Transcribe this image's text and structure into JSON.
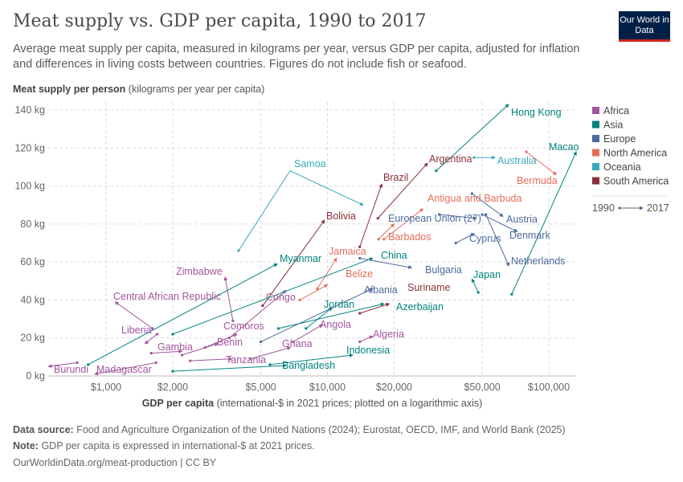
{
  "header": {
    "title": "Meat supply vs. GDP per capita, 1990 to 2017",
    "subtitle": "Average meat supply per capita, measured in kilograms per year, versus GDP per capita, adjusted for inflation and differences in living costs between countries. Figures do not include fish or seafood.",
    "logo": "Our World in Data"
  },
  "footer": {
    "source_label": "Data source:",
    "source": "Food and Agriculture Organization of the United Nations (2024); Eurostat, OECD, IMF, and World Bank (2025)",
    "note_label": "Note:",
    "note": "GDP per capita is expressed in international-$ at 2021 prices.",
    "url": "OurWorldinData.org/meat-production | CC BY"
  },
  "chart_data": {
    "type": "scatter",
    "title": "Meat supply vs. GDP per capita, 1990 to 2017",
    "ylabel_bold": "Meat supply per person",
    "ylabel_rest": "(kilograms per year per capita)",
    "xlabel_bold": "GDP per capita",
    "xlabel_rest": "(international-$ in 2021 prices; plotted on a logarithmic axis)",
    "x_scale": "log",
    "xlim": [
      550,
      133000
    ],
    "ylim": [
      0,
      140
    ],
    "grid": true,
    "x_ticks": [
      {
        "v": 1000,
        "label": "$1,000"
      },
      {
        "v": 2000,
        "label": "$2,000"
      },
      {
        "v": 5000,
        "label": "$5,000"
      },
      {
        "v": 10000,
        "label": "$10,000"
      },
      {
        "v": 20000,
        "label": "$20,000"
      },
      {
        "v": 50000,
        "label": "$50,000"
      },
      {
        "v": 100000,
        "label": "$100,000"
      }
    ],
    "y_ticks": [
      {
        "v": 0,
        "label": "0 kg"
      },
      {
        "v": 20,
        "label": "20 kg"
      },
      {
        "v": 40,
        "label": "40 kg"
      },
      {
        "v": 60,
        "label": "60 kg"
      },
      {
        "v": 80,
        "label": "80 kg"
      },
      {
        "v": 100,
        "label": "100 kg"
      },
      {
        "v": 120,
        "label": "120 kg"
      },
      {
        "v": 140,
        "label": "140 kg"
      }
    ],
    "legend_position": "right",
    "legend": [
      {
        "name": "Africa",
        "color": "#a2559c"
      },
      {
        "name": "Asia",
        "color": "#00847e"
      },
      {
        "name": "Europe",
        "color": "#4c6a9c"
      },
      {
        "name": "North America",
        "color": "#e56e5a"
      },
      {
        "name": "Oceania",
        "color": "#38aaba"
      },
      {
        "name": "South America",
        "color": "#883039"
      }
    ],
    "time_legend": {
      "start": "1990",
      "end": "2017"
    },
    "series": [
      {
        "name": "Hong Kong",
        "region": "Asia",
        "points": [
          [
            31000,
            108
          ],
          [
            65800,
            143
          ]
        ]
      },
      {
        "name": "Macao",
        "region": "Asia",
        "points": [
          [
            68000,
            43
          ],
          [
            133000,
            118
          ]
        ]
      },
      {
        "name": "Argentina",
        "region": "South America",
        "points": [
          [
            16900,
            83
          ],
          [
            28300,
            112
          ]
        ]
      },
      {
        "name": "Australia",
        "region": "Oceania",
        "points": [
          [
            45900,
            115
          ],
          [
            57100,
            115
          ]
        ]
      },
      {
        "name": "Bermuda",
        "region": "North America",
        "points": [
          [
            79100,
            118
          ],
          [
            108000,
            106
          ]
        ]
      },
      {
        "name": "Brazil",
        "region": "South America",
        "points": [
          [
            14000,
            68
          ],
          [
            17600,
            101
          ]
        ]
      },
      {
        "name": "Bolivia",
        "region": "South America",
        "points": [
          [
            5100,
            37
          ],
          [
            9700,
            82
          ]
        ]
      },
      {
        "name": "Samoa",
        "region": "Oceania",
        "points": [
          [
            3970,
            66
          ],
          [
            6780,
            108
          ],
          [
            14500,
            90
          ]
        ]
      },
      {
        "name": "Myanmar",
        "region": "Asia",
        "points": [
          [
            830,
            6
          ],
          [
            5930,
            59
          ]
        ]
      },
      {
        "name": "Zimbabwe",
        "region": "Africa",
        "points": [
          [
            3740,
            29
          ],
          [
            3450,
            52
          ]
        ]
      },
      {
        "name": "Central African Republic",
        "region": "Africa",
        "points": [
          [
            1620,
            25
          ],
          [
            1100,
            39
          ]
        ]
      },
      {
        "name": "Congo",
        "region": "Africa",
        "points": [
          [
            3600,
            20
          ],
          [
            6500,
            45
          ]
        ]
      },
      {
        "name": "Liberia",
        "region": "Africa",
        "points": [
          [
            1700,
            22
          ],
          [
            1500,
            17
          ]
        ]
      },
      {
        "name": "Gambia",
        "region": "Africa",
        "points": [
          [
            1600,
            12
          ],
          [
            2200,
            13
          ]
        ]
      },
      {
        "name": "Comoros",
        "region": "Africa",
        "points": [
          [
            2800,
            15
          ],
          [
            3900,
            22
          ]
        ]
      },
      {
        "name": "Benin",
        "region": "Africa",
        "points": [
          [
            2200,
            11
          ],
          [
            3200,
            17
          ]
        ]
      },
      {
        "name": "Tanzania",
        "region": "Africa",
        "points": [
          [
            2400,
            8
          ],
          [
            3700,
            9
          ]
        ]
      },
      {
        "name": "Burundi",
        "region": "Africa",
        "points": [
          [
            740,
            7
          ],
          [
            550,
            5
          ]
        ]
      },
      {
        "name": "Madagascar",
        "region": "Africa",
        "points": [
          [
            1680,
            7
          ],
          [
            890,
            1
          ]
        ]
      },
      {
        "name": "Ghana",
        "region": "Africa",
        "points": [
          [
            4500,
            9
          ],
          [
            6800,
            15
          ]
        ]
      },
      {
        "name": "Angola",
        "region": "Africa",
        "points": [
          [
            7000,
            18
          ],
          [
            9500,
            27
          ]
        ]
      },
      {
        "name": "Algeria",
        "region": "Africa",
        "points": [
          [
            14000,
            18
          ],
          [
            16000,
            21
          ]
        ]
      },
      {
        "name": "Bangladesh",
        "region": "Asia",
        "points": [
          [
            2000,
            2.5
          ],
          [
            6500,
            5.5
          ]
        ]
      },
      {
        "name": "Indonesia",
        "region": "Asia",
        "points": [
          [
            5500,
            6
          ],
          [
            13000,
            11
          ]
        ]
      },
      {
        "name": "Jordan",
        "region": "Asia",
        "points": [
          [
            8000,
            25
          ],
          [
            10500,
            36
          ]
        ]
      },
      {
        "name": "Azerbaijan",
        "region": "Asia",
        "points": [
          [
            6000,
            25
          ],
          [
            18000,
            38
          ]
        ]
      },
      {
        "name": "Albania",
        "region": "Europe",
        "points": [
          [
            5000,
            18
          ],
          [
            16000,
            46
          ]
        ]
      },
      {
        "name": "Suriname",
        "region": "South America",
        "points": [
          [
            14000,
            33
          ],
          [
            19000,
            38
          ]
        ]
      },
      {
        "name": "Belize",
        "region": "North America",
        "points": [
          [
            7500,
            40
          ],
          [
            10000,
            48
          ]
        ]
      },
      {
        "name": "Jamaica",
        "region": "North America",
        "points": [
          [
            9000,
            46
          ],
          [
            11000,
            62
          ]
        ]
      },
      {
        "name": "China",
        "region": "Asia",
        "points": [
          [
            2000,
            22
          ],
          [
            16000,
            62
          ]
        ]
      },
      {
        "name": "Barbados",
        "region": "North America",
        "points": [
          [
            17000,
            72
          ],
          [
            20000,
            80
          ]
        ]
      },
      {
        "name": "Bulgaria",
        "region": "Europe",
        "points": [
          [
            14000,
            62
          ],
          [
            24000,
            57
          ]
        ]
      },
      {
        "name": "European Union (27)",
        "region": "Europe",
        "points": [
          [
            32000,
            85
          ],
          [
            47000,
            83
          ]
        ]
      },
      {
        "name": "Antigua and Barbuda",
        "region": "North America",
        "points": [
          [
            18000,
            72
          ],
          [
            27000,
            88
          ]
        ]
      },
      {
        "name": "Cyprus",
        "region": "Europe",
        "points": [
          [
            38000,
            70
          ],
          [
            46000,
            75
          ]
        ]
      },
      {
        "name": "Austria",
        "region": "Europe",
        "points": [
          [
            45000,
            96
          ],
          [
            62000,
            84
          ]
        ]
      },
      {
        "name": "Denmark",
        "region": "Europe",
        "points": [
          [
            50000,
            85
          ],
          [
            72000,
            76
          ]
        ]
      },
      {
        "name": "Netherlands",
        "region": "Europe",
        "points": [
          [
            52000,
            85
          ],
          [
            66000,
            58
          ]
        ]
      },
      {
        "name": "Japan",
        "region": "Asia",
        "points": [
          [
            48000,
            44
          ],
          [
            45000,
            51
          ]
        ]
      }
    ]
  }
}
